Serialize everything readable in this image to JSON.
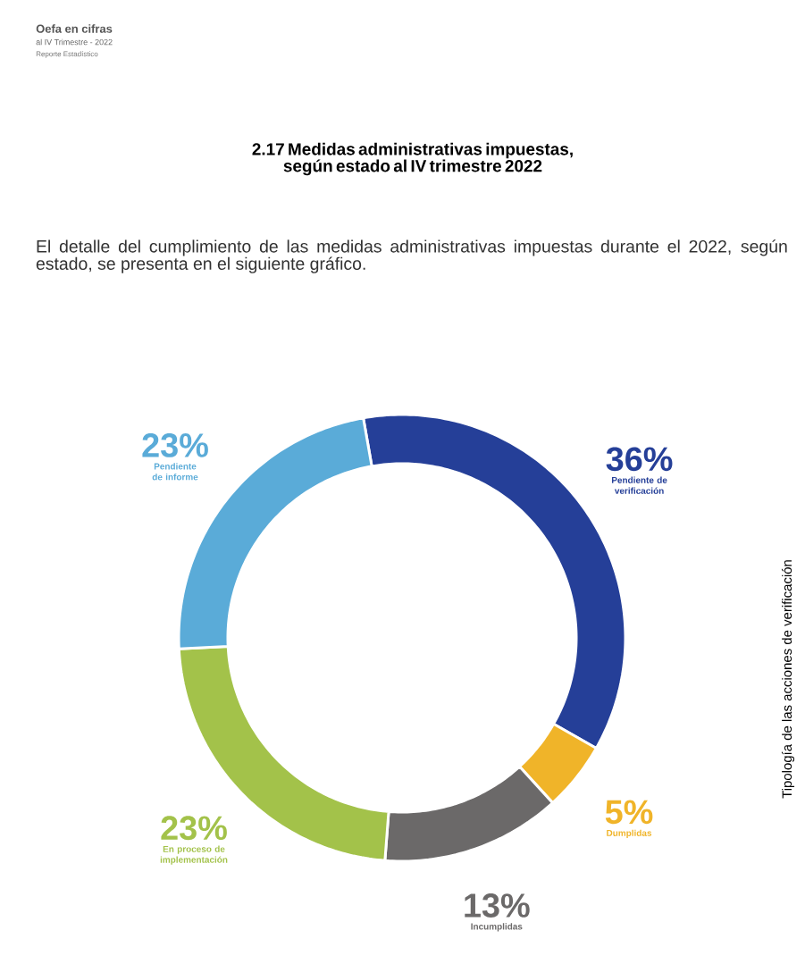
{
  "chart_data": {
    "type": "donut",
    "title": "2.17 Medidas administrativas impuestas, según estado al IV trimestre 2022",
    "subtitle": "El detalle del cumplimiento de las medidas administrativas impuestas durante el 2022, según estado, se presenta en el siguiente gráfico.",
    "annotations": [
      "Oefa en cifras",
      "al IV Trimestre - 2022",
      "Reporte Estadístico",
      "Tipología de las acciones de verificación"
    ],
    "categories": [
      "Pendiente de verificación",
      "Dumplidas",
      "Incumplidas",
      "En proceso de implementación",
      "Pendiente de informe"
    ],
    "values": [
      36,
      5,
      13,
      23,
      23
    ],
    "colors": [
      "#253f98",
      "#f0b429",
      "#6b6969",
      "#a3c24a",
      "#5aabd8"
    ],
    "value_labels": [
      "36%",
      "5%",
      "13%",
      "23%",
      "23%"
    ]
  }
}
